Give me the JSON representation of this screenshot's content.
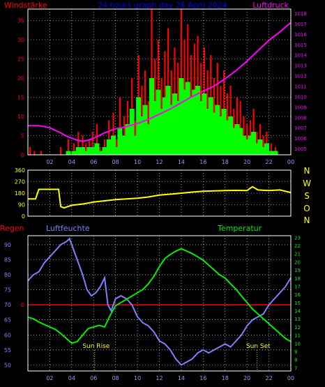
{
  "colors": {
    "background": "#000000",
    "frame": "#ffffff",
    "grid": "#ffffff",
    "wind_gust": "#ff0000",
    "wind_avg": "#00ff00",
    "pressure": "#ff00ff",
    "direction": "#ffff00",
    "humidity": "#8080ff",
    "temperature": "#00ee00",
    "rain": "#ff0000",
    "title": "#0000ff",
    "sun_label": "#ffff00"
  },
  "header": {
    "left_label": "Windstärke",
    "title": "24 hours graph day  28 April 2024",
    "right_label": "Luftdruck"
  },
  "compass": {
    "labels": [
      "N",
      "W",
      "S",
      "O",
      "N"
    ]
  },
  "bottom_header": {
    "rain_label": "Regen",
    "humidity_label": "Luftfeuchte",
    "temperature_label": "Temperatur"
  },
  "annotations": {
    "sunrise": {
      "label": "Sun Rise",
      "hour": 6.1
    },
    "sunset": {
      "label": "Sun Set",
      "hour": 20.9
    }
  },
  "chart_data": [
    {
      "type": "bar",
      "name_hint": "wind",
      "x_ticks": [
        "02",
        "04",
        "06",
        "08",
        "10",
        "12",
        "14",
        "16",
        "18",
        "20",
        "22",
        "00"
      ],
      "x_tick_hours": [
        2,
        4,
        6,
        8,
        10,
        12,
        14,
        16,
        18,
        20,
        22,
        24
      ],
      "x_range": [
        0,
        24
      ],
      "y_left_ticks": [
        0,
        5,
        10,
        15,
        20,
        25,
        30,
        35
      ],
      "y_left_range": [
        0,
        38
      ],
      "y_right_ticks": [
        1005,
        1006,
        1007,
        1008,
        1009,
        1010,
        1011,
        1012,
        1013,
        1014,
        1015,
        1016,
        1017,
        1018
      ],
      "y_right_range": [
        1004.4,
        1018.4
      ],
      "pressure": {
        "hours": [
          0,
          1,
          2,
          3,
          3.5,
          4,
          4.5,
          5,
          5.5,
          6,
          7,
          8,
          9,
          10,
          11,
          12,
          13,
          14,
          15,
          16,
          17,
          18,
          19,
          20,
          21,
          22,
          23,
          24
        ],
        "values": [
          1007.2,
          1007.2,
          1007.0,
          1006.5,
          1006.2,
          1006.0,
          1005.8,
          1005.7,
          1005.8,
          1006.0,
          1006.5,
          1006.9,
          1007.1,
          1007.4,
          1007.8,
          1008.3,
          1008.8,
          1009.4,
          1010.0,
          1010.5,
          1011.0,
          1011.7,
          1012.5,
          1013.4,
          1014.4,
          1015.4,
          1016.2,
          1017.1
        ]
      },
      "wind_gust_hours": [
        0.2,
        0.6,
        1.2,
        3.0,
        3.7,
        4.2,
        4.6,
        5.0,
        5.3,
        5.6,
        5.9,
        6.3,
        6.6,
        7.0,
        7.4,
        7.8,
        8.1,
        8.4,
        8.8,
        9.1,
        9.5,
        9.8,
        10.1,
        10.4,
        10.7,
        11.0,
        11.3,
        11.6,
        11.9,
        12.2,
        12.5,
        12.8,
        13.1,
        13.4,
        13.7,
        14.0,
        14.3,
        14.6,
        14.9,
        15.2,
        15.5,
        15.8,
        16.1,
        16.4,
        16.7,
        17.0,
        17.3,
        17.6,
        17.9,
        18.2,
        18.5,
        18.8,
        19.1,
        19.4,
        19.7,
        20.0,
        20.3,
        20.6,
        20.9,
        21.2,
        21.5,
        21.8,
        22.2,
        22.6
      ],
      "wind_gust_values": [
        2,
        1,
        1,
        2,
        4,
        3,
        6,
        5,
        3,
        4,
        6,
        8,
        2,
        4,
        9,
        11,
        4,
        15,
        10,
        14,
        20,
        9,
        26,
        18,
        22,
        14,
        38,
        25,
        30,
        20,
        27,
        33,
        22,
        28,
        24,
        38,
        30,
        34,
        26,
        29,
        31,
        24,
        28,
        22,
        26,
        20,
        24,
        18,
        22,
        16,
        18,
        12,
        15,
        14,
        10,
        8,
        9,
        12,
        6,
        8,
        5,
        6,
        3,
        2
      ],
      "wind_avg_values": [
        0,
        0,
        0,
        0,
        1,
        1,
        2,
        2,
        1,
        2,
        2,
        3,
        1,
        2,
        4,
        5,
        2,
        7,
        5,
        8,
        12,
        5,
        15,
        10,
        13,
        8,
        20,
        14,
        17,
        12,
        15,
        18,
        13,
        16,
        14,
        20,
        17,
        19,
        15,
        17,
        18,
        14,
        16,
        12,
        15,
        11,
        13,
        10,
        12,
        9,
        10,
        7,
        8,
        7,
        5,
        4,
        5,
        6,
        3,
        4,
        2,
        3,
        1,
        1
      ]
    },
    {
      "type": "line",
      "name_hint": "wind direction",
      "x_range": [
        0,
        24
      ],
      "y_ticks": [
        0,
        90,
        180,
        270,
        360
      ],
      "y_range": [
        0,
        360
      ],
      "hours": [
        0,
        0.7,
        1.0,
        2.8,
        3.0,
        3.3,
        4.0,
        5.0,
        6.0,
        7.0,
        8.0,
        9.0,
        10.0,
        11.0,
        12.0,
        13.0,
        14.0,
        15.0,
        16.0,
        17.0,
        18.0,
        19.0,
        20.0,
        20.5,
        21.0,
        22.0,
        23.0,
        24.0
      ],
      "values": [
        135,
        135,
        210,
        210,
        75,
        65,
        85,
        95,
        110,
        120,
        130,
        135,
        140,
        150,
        165,
        172,
        180,
        188,
        195,
        198,
        200,
        202,
        200,
        230,
        205,
        200,
        205,
        185
      ]
    },
    {
      "type": "line",
      "name_hint": "humidity temperature rain",
      "x_range": [
        0,
        24
      ],
      "humidity_ticks": [
        50,
        55,
        60,
        65,
        70,
        75,
        80,
        85,
        90
      ],
      "humidity_range": [
        48,
        93
      ],
      "temperature_ticks": [
        7,
        8,
        9,
        10,
        11,
        12,
        13,
        14,
        15,
        16,
        17,
        18,
        19,
        20,
        21,
        22,
        23
      ],
      "temperature_range": [
        6.6,
        23.2
      ],
      "rain_value": 0,
      "humidity": {
        "hours": [
          0,
          0.5,
          1.0,
          1.5,
          2.0,
          2.5,
          3.0,
          3.5,
          3.8,
          4.2,
          4.6,
          5.0,
          5.4,
          5.8,
          6.2,
          6.6,
          7.0,
          7.3,
          7.6,
          8.0,
          8.5,
          9.0,
          9.5,
          10.0,
          10.5,
          11.0,
          11.5,
          12.0,
          12.5,
          13.0,
          13.5,
          14.0,
          14.5,
          15.0,
          15.5,
          16.0,
          16.5,
          17.0,
          17.5,
          18.0,
          18.5,
          19.0,
          19.5,
          20.0,
          20.5,
          21.0,
          21.5,
          22.0,
          22.5,
          23.0,
          23.5,
          24.0
        ],
        "values": [
          78,
          80,
          81,
          84,
          86,
          88,
          90,
          91,
          92,
          88,
          84,
          80,
          75,
          73,
          74,
          76,
          79,
          70,
          68,
          72,
          73,
          72,
          70,
          66,
          64,
          63,
          61,
          58,
          57,
          55,
          52,
          50,
          51,
          52,
          54,
          55,
          54,
          55,
          56,
          57,
          56,
          58,
          60,
          63,
          65,
          66,
          67,
          70,
          72,
          74,
          76,
          79
        ]
      },
      "temperature": {
        "hours": [
          0,
          0.5,
          1.0,
          1.5,
          2.0,
          2.5,
          3.0,
          3.5,
          4.0,
          4.5,
          5.0,
          5.5,
          6.0,
          6.5,
          7.0,
          7.5,
          8.0,
          8.5,
          9.0,
          9.5,
          10.0,
          10.5,
          11.0,
          11.5,
          12.0,
          12.5,
          13.0,
          13.5,
          14.0,
          14.5,
          15.0,
          15.5,
          16.0,
          16.5,
          17.0,
          17.5,
          18.0,
          18.5,
          19.0,
          19.5,
          20.0,
          20.5,
          21.0,
          21.5,
          22.0,
          22.5,
          23.0,
          23.5,
          24.0
        ],
        "values": [
          13.2,
          13.0,
          12.6,
          12.3,
          12.0,
          11.7,
          11.2,
          10.6,
          10.0,
          10.2,
          11.0,
          11.8,
          12.0,
          12.2,
          12.0,
          13.4,
          14.6,
          15.0,
          15.4,
          15.8,
          16.2,
          16.6,
          17.3,
          18.2,
          19.4,
          20.4,
          20.9,
          21.3,
          21.6,
          21.3,
          21.0,
          20.6,
          20.2,
          19.6,
          19.0,
          18.4,
          18.0,
          17.3,
          16.6,
          15.8,
          15.0,
          14.2,
          13.6,
          13.0,
          12.4,
          11.8,
          11.2,
          10.6,
          10.2
        ]
      }
    }
  ]
}
